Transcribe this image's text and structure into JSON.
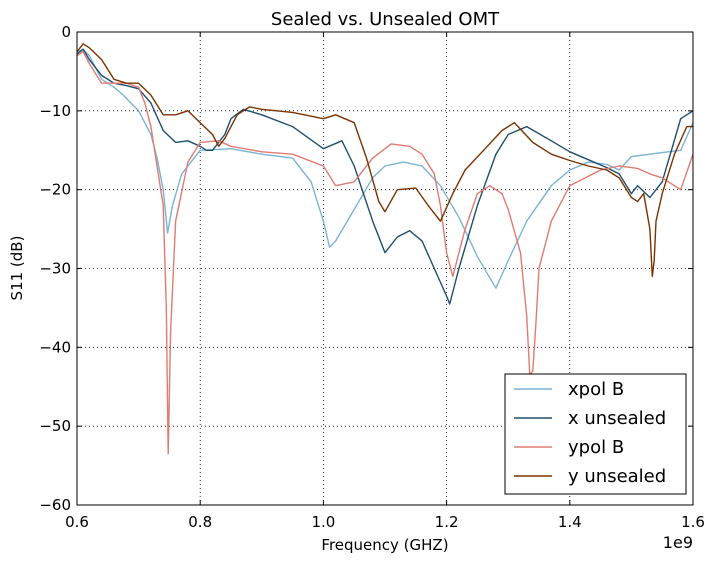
{
  "chart_data": {
    "type": "line",
    "title": "Sealed vs. Unsealed OMT",
    "xlabel": "Frequency (GHZ)",
    "ylabel": "S11 (dB)",
    "x_offset_label": "1e9",
    "xlim": [
      0.6,
      1.6
    ],
    "ylim": [
      -60,
      0
    ],
    "x_ticks": [
      "0.6",
      "0.8",
      "1.0",
      "1.2",
      "1.4",
      "1.6"
    ],
    "y_ticks": [
      "0",
      "−10",
      "−20",
      "−30",
      "−40",
      "−50",
      "−60"
    ],
    "x_tick_values": [
      0.6,
      0.8,
      1.0,
      1.2,
      1.4,
      1.6
    ],
    "y_tick_values": [
      0,
      -10,
      -20,
      -30,
      -40,
      -50,
      -60
    ],
    "grid": true,
    "legend_position": "lower-right",
    "series": [
      {
        "name": "xpol B",
        "color": "#7ab4d4",
        "x": [
          0.6,
          0.61,
          0.62,
          0.64,
          0.66,
          0.675,
          0.7,
          0.72,
          0.73,
          0.74,
          0.747,
          0.755,
          0.77,
          0.8,
          0.85,
          0.9,
          0.95,
          0.98,
          1.0,
          1.01,
          1.02,
          1.05,
          1.08,
          1.1,
          1.13,
          1.16,
          1.19,
          1.22,
          1.25,
          1.28,
          1.3,
          1.33,
          1.37,
          1.4,
          1.43,
          1.46,
          1.48,
          1.5,
          1.53,
          1.55,
          1.58,
          1.6
        ],
        "y": [
          -2.5,
          -2.2,
          -3.0,
          -6.0,
          -7.0,
          -8.0,
          -10.0,
          -13.0,
          -16.0,
          -20.0,
          -25.5,
          -22.0,
          -18.0,
          -15.0,
          -14.8,
          -15.5,
          -16.0,
          -19.0,
          -24.0,
          -27.3,
          -26.5,
          -22.5,
          -18.5,
          -17.0,
          -16.5,
          -17.0,
          -19.5,
          -23.5,
          -28.5,
          -32.5,
          -29.0,
          -24.0,
          -19.5,
          -17.5,
          -16.5,
          -16.8,
          -17.5,
          -15.8,
          -15.5,
          -15.3,
          -15.0,
          -11.5
        ]
      },
      {
        "name": "x unsealed",
        "color": "#1f4f6e",
        "x": [
          0.6,
          0.61,
          0.62,
          0.64,
          0.66,
          0.68,
          0.7,
          0.72,
          0.74,
          0.76,
          0.78,
          0.8,
          0.81,
          0.82,
          0.84,
          0.85,
          0.87,
          0.9,
          0.95,
          1.0,
          1.03,
          1.05,
          1.08,
          1.1,
          1.12,
          1.14,
          1.16,
          1.18,
          1.2,
          1.205,
          1.22,
          1.25,
          1.28,
          1.3,
          1.33,
          1.37,
          1.4,
          1.43,
          1.46,
          1.48,
          1.5,
          1.51,
          1.53,
          1.55,
          1.58,
          1.6
        ],
        "y": [
          -2.8,
          -2.2,
          -3.5,
          -5.5,
          -6.5,
          -6.8,
          -7.2,
          -9.0,
          -12.5,
          -14.0,
          -13.8,
          -14.5,
          -15.0,
          -15.0,
          -13.0,
          -11.0,
          -9.8,
          -10.5,
          -12.0,
          -14.8,
          -13.8,
          -17.0,
          -24.0,
          -28.0,
          -26.0,
          -25.2,
          -26.5,
          -30.0,
          -33.5,
          -34.5,
          -30.0,
          -22.0,
          -15.5,
          -13.0,
          -12.0,
          -13.8,
          -15.2,
          -16.2,
          -17.2,
          -18.0,
          -20.5,
          -19.5,
          -21.0,
          -19.0,
          -11.0,
          -10.0
        ]
      },
      {
        "name": "ypol B",
        "color": "#e07b73",
        "x": [
          0.6,
          0.61,
          0.62,
          0.64,
          0.66,
          0.68,
          0.7,
          0.71,
          0.72,
          0.74,
          0.745,
          0.748,
          0.752,
          0.76,
          0.78,
          0.8,
          0.83,
          0.85,
          0.9,
          0.95,
          1.0,
          1.02,
          1.05,
          1.08,
          1.11,
          1.14,
          1.16,
          1.18,
          1.19,
          1.2,
          1.21,
          1.23,
          1.25,
          1.27,
          1.29,
          1.3,
          1.32,
          1.33,
          1.335,
          1.34,
          1.345,
          1.35,
          1.37,
          1.4,
          1.45,
          1.48,
          1.51,
          1.53,
          1.55,
          1.58,
          1.6
        ],
        "y": [
          -3.0,
          -2.5,
          -4.0,
          -6.5,
          -6.5,
          -6.5,
          -7.0,
          -9.0,
          -12.0,
          -22.0,
          -35.0,
          -53.5,
          -38.0,
          -24.0,
          -16.5,
          -14.0,
          -13.8,
          -14.5,
          -15.2,
          -15.5,
          -17.0,
          -19.5,
          -19.0,
          -16.0,
          -14.2,
          -14.5,
          -15.5,
          -18.0,
          -22.0,
          -28.0,
          -31.0,
          -25.0,
          -20.5,
          -19.5,
          -20.5,
          -22.5,
          -28.0,
          -36.0,
          -43.5,
          -43.0,
          -37.0,
          -30.0,
          -24.0,
          -19.5,
          -17.5,
          -17.0,
          -17.3,
          -18.0,
          -18.5,
          -20.0,
          -15.5
        ]
      },
      {
        "name": "y unsealed",
        "color": "#7a3300",
        "x": [
          0.6,
          0.61,
          0.62,
          0.64,
          0.66,
          0.68,
          0.7,
          0.72,
          0.74,
          0.76,
          0.78,
          0.8,
          0.82,
          0.83,
          0.84,
          0.86,
          0.88,
          0.9,
          0.95,
          1.0,
          1.02,
          1.05,
          1.07,
          1.09,
          1.1,
          1.12,
          1.15,
          1.17,
          1.19,
          1.21,
          1.23,
          1.26,
          1.29,
          1.31,
          1.34,
          1.37,
          1.4,
          1.43,
          1.46,
          1.48,
          1.5,
          1.51,
          1.52,
          1.53,
          1.534,
          1.537,
          1.54,
          1.55,
          1.57,
          1.59,
          1.6
        ],
        "y": [
          -2.5,
          -1.5,
          -2.0,
          -3.5,
          -6.0,
          -6.5,
          -6.5,
          -8.0,
          -10.5,
          -10.5,
          -10.0,
          -11.5,
          -13.0,
          -14.5,
          -13.5,
          -10.5,
          -9.5,
          -9.8,
          -10.2,
          -11.0,
          -10.5,
          -11.5,
          -16.0,
          -21.5,
          -22.8,
          -20.0,
          -19.8,
          -22.0,
          -24.0,
          -20.5,
          -17.5,
          -15.0,
          -12.5,
          -11.5,
          -14.0,
          -15.5,
          -16.3,
          -17.0,
          -17.5,
          -18.5,
          -21.0,
          -21.5,
          -20.5,
          -25.0,
          -31.0,
          -29.0,
          -24.0,
          -20.5,
          -15.5,
          -12.0,
          -12.0
        ]
      }
    ]
  }
}
